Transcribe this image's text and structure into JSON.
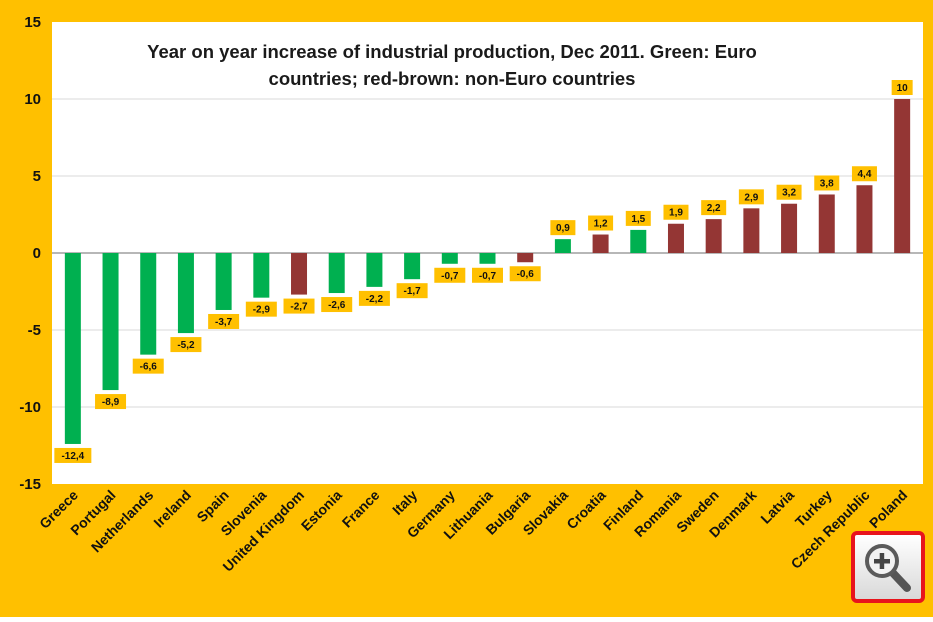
{
  "colors": {
    "background": "#ffc000",
    "plot_area": "#ffffff",
    "euro": "#00b050",
    "non_euro": "#943634",
    "label_box": "#ffc000",
    "grid": "#d9d9d9"
  },
  "zoom_control": {
    "icon": "magnifier-plus-icon"
  },
  "chart_data": {
    "type": "bar",
    "title_lines": [
      "Year on year increase of industrial production, Dec 2011. Green: Euro",
      "countries; red-brown: non-Euro countries"
    ],
    "xlabel": "",
    "ylabel": "",
    "ylim": [
      -15,
      15
    ],
    "yticks": [
      "-15",
      "-10",
      "-5",
      "0",
      "5",
      "10",
      "15"
    ],
    "ytick_values": [
      -15,
      -10,
      -5,
      0,
      5,
      10,
      15
    ],
    "grid": true,
    "legend": "none",
    "categories": [
      "Greece",
      "Portugal",
      "Netherlands",
      "Ireland",
      "Spain",
      "Slovenia",
      "United Kingdom",
      "Estonia",
      "France",
      "Italy",
      "Germany",
      "Lithuania",
      "Bulgaria",
      "Slovakia",
      "Croatia",
      "Finland",
      "Romania",
      "Sweden",
      "Denmark",
      "Latvia",
      "Turkey",
      "Czech Republic",
      "Poland"
    ],
    "values": [
      -12.4,
      -8.9,
      -6.6,
      -5.2,
      -3.7,
      -2.9,
      -2.7,
      -2.6,
      -2.2,
      -1.7,
      -0.7,
      -0.7,
      -0.6,
      0.9,
      1.2,
      1.5,
      1.9,
      2.2,
      2.9,
      3.2,
      3.8,
      4.4,
      10
    ],
    "value_labels": [
      "-12,4",
      "-8,9",
      "-6,6",
      "-5,2",
      "-3,7",
      "-2,9",
      "-2,7",
      "-2,6",
      "-2,2",
      "-1,7",
      "-0,7",
      "-0,7",
      "-0,6",
      "0,9",
      "1,2",
      "1,5",
      "1,9",
      "2,2",
      "2,9",
      "3,2",
      "3,8",
      "4,4",
      "10"
    ],
    "groups": [
      "euro",
      "euro",
      "euro",
      "euro",
      "euro",
      "euro",
      "non_euro",
      "euro",
      "euro",
      "euro",
      "euro",
      "euro",
      "non_euro",
      "euro",
      "non_euro",
      "euro",
      "non_euro",
      "non_euro",
      "non_euro",
      "non_euro",
      "non_euro",
      "non_euro",
      "non_euro"
    ]
  }
}
